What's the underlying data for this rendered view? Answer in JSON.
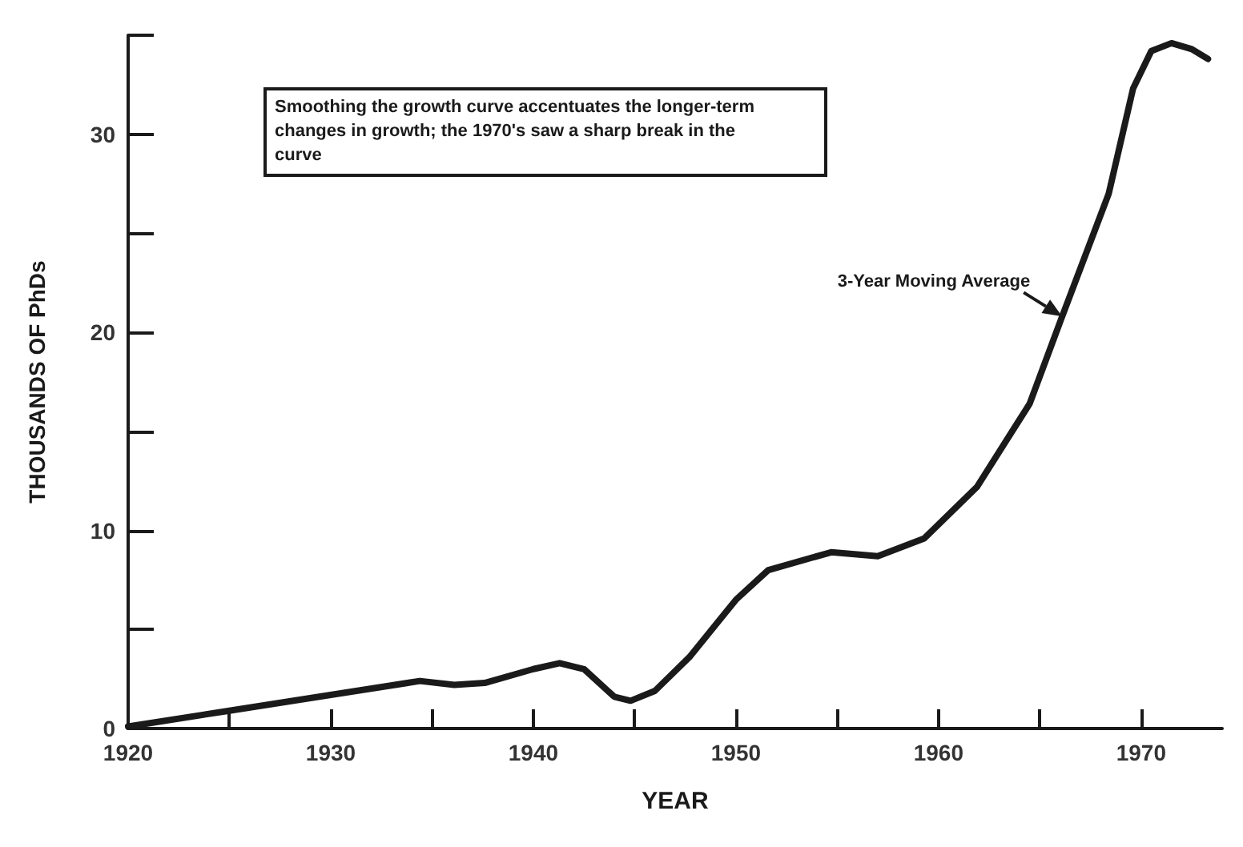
{
  "chart_data": {
    "type": "line",
    "xlabel": "YEAR",
    "ylabel": "THOUSANDS OF PhDs",
    "x": [
      1920,
      1925,
      1930,
      1934.4,
      1936.1,
      1937.6,
      1940,
      1941.3,
      1942.5,
      1944,
      1944.8,
      1946,
      1947.7,
      1950,
      1951.6,
      1954.7,
      1957,
      1959.3,
      1961.9,
      1964.5,
      1966.1,
      1968.4,
      1969.6,
      1970.5,
      1971.5,
      1972.5,
      1973.3
    ],
    "series": [
      {
        "color": "#1a1a1a",
        "values": [
          0.1,
          0.9,
          1.7,
          2.4,
          2.2,
          2.3,
          3.0,
          3.3,
          3.0,
          1.6,
          1.4,
          1.9,
          3.6,
          6.5,
          8.0,
          8.9,
          8.7,
          9.6,
          12.2,
          16.4,
          20.8,
          27.0,
          32.3,
          34.2,
          34.6,
          34.3,
          33.8
        ]
      }
    ],
    "xlim": [
      1920,
      1974
    ],
    "xticks": [
      1920,
      {
        "value": 1925,
        "label": null
      },
      1930,
      {
        "value": 1935,
        "label": null
      },
      1940,
      {
        "value": 1945,
        "label": null
      },
      1950,
      {
        "value": 1955,
        "label": null
      },
      1960,
      {
        "value": 1965,
        "label": null
      },
      1970
    ],
    "ylim": [
      0,
      35
    ],
    "yticks": [
      0,
      {
        "value": 5,
        "label": null
      },
      10,
      {
        "value": 15,
        "label": null
      },
      20,
      {
        "value": 25,
        "label": null
      },
      30,
      {
        "value": 35,
        "label": null
      }
    ],
    "grid": false,
    "marker": "none",
    "line_style": "solid",
    "annotations": [
      "Smoothing the growth curve accentuates the longer-term changes in growth; the 1970's saw a sharp break in the curve",
      {
        "text": "3-Year Moving Average",
        "x": 1966.1,
        "y": 20.8
      }
    ]
  }
}
